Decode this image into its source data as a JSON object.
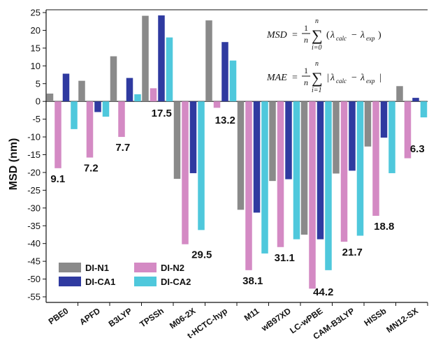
{
  "chart_data": {
    "type": "bar",
    "title": "",
    "xlabel": "",
    "ylabel": "MSD (nm)",
    "ylim": [
      -55,
      25
    ],
    "yticks": [
      25,
      20,
      15,
      10,
      5,
      0,
      -5,
      -10,
      -15,
      -20,
      -25,
      -30,
      -35,
      -40,
      -45,
      -50,
      -55
    ],
    "grid": false,
    "legend_position": "bottom-left",
    "categories": [
      "PBE0",
      "APFD",
      "B3LYP",
      "TPSSh",
      "M06-2X",
      "t-HCTC-hyp",
      "M11",
      "wB97XD",
      "LC-wPBE",
      "CAM-B3LYP",
      "HISSb",
      "MN12-SX"
    ],
    "series": [
      {
        "name": "DI-N1",
        "color": "#8a8a8a",
        "values": [
          2.2,
          5.8,
          12.7,
          24.1,
          -21.8,
          22.8,
          -30.5,
          -22.4,
          -37.5,
          -20.3,
          -12.7,
          4.3
        ]
      },
      {
        "name": "DI-N2",
        "color": "#d48ac4",
        "values": [
          -18.8,
          -15.8,
          -10.0,
          3.7,
          -40.2,
          -1.8,
          -47.5,
          -41.0,
          -52.7,
          -39.5,
          -32.2,
          -16.0
        ]
      },
      {
        "name": "DI-CA1",
        "color": "#2f3aa0",
        "values": [
          7.8,
          -3.0,
          6.6,
          24.2,
          -20.2,
          16.7,
          -31.3,
          -21.9,
          -38.8,
          -19.5,
          -10.2,
          1.0
        ]
      },
      {
        "name": "DI-CA2",
        "color": "#4fc8dc",
        "values": [
          -7.8,
          -4.3,
          2.0,
          18.0,
          -36.2,
          11.5,
          -42.8,
          -38.8,
          -47.5,
          -37.8,
          -20.2,
          -4.5
        ]
      }
    ],
    "annotations": [
      "9.1",
      "7.2",
      "7.7",
      "17.5",
      "29.5",
      "13.2",
      "38.1",
      "31.1",
      "44.2",
      "21.7",
      "18.8",
      "6.3"
    ],
    "formulas": {
      "msd_lhs": "MSD",
      "mae_lhs": "MAE",
      "equals": "=",
      "frac_num": "1",
      "frac_den": "n",
      "sum_upper": "n",
      "sum_symbol": "∑",
      "msd_sum_lower": "i=0",
      "mae_sum_lower": "i=1",
      "lambda": "λ",
      "calc": "calc",
      "exp": "exp",
      "minus": "−",
      "lparen": "(",
      "rparen": ")",
      "bar": "|"
    }
  }
}
